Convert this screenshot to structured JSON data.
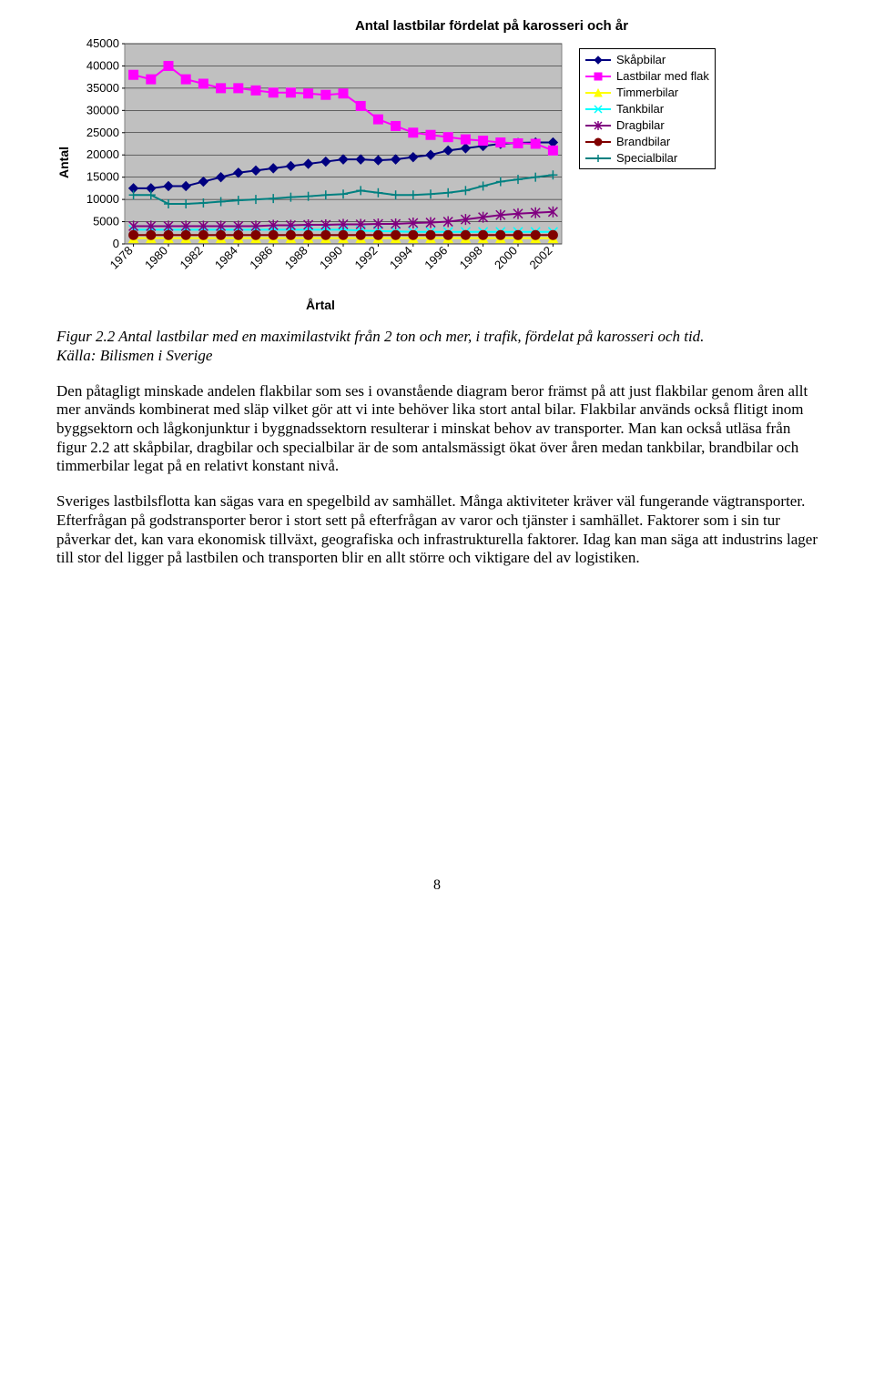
{
  "chart": {
    "title": "Antal lastbilar fördelat på karosseri och år",
    "type": "line",
    "y_label": "Antal",
    "x_label": "Årtal",
    "background_color": "#ffffff",
    "plot_bg_color": "#c0c0c0",
    "grid_color": "#000000",
    "border_color": "#808080",
    "axis_tick_font_size": 13,
    "axis_tick_font_family": "Helvetica",
    "title_font_size": 15,
    "title_font_weight": "bold",
    "ylim": [
      0,
      45000
    ],
    "ytick_step": 5000,
    "x_categories": [
      "1978",
      "1979",
      "1980",
      "1981",
      "1982",
      "1983",
      "1984",
      "1985",
      "1986",
      "1987",
      "1988",
      "1989",
      "1990",
      "1991",
      "1992",
      "1993",
      "1994",
      "1995",
      "1996",
      "1997",
      "1998",
      "1999",
      "2000",
      "2001",
      "2002"
    ],
    "x_tick_labels": [
      "1978",
      "1980",
      "1982",
      "1984",
      "1986",
      "1988",
      "1990",
      "1992",
      "1994",
      "1996",
      "1998",
      "2000",
      "2002"
    ],
    "x_tick_rotation": -45,
    "line_width": 2,
    "marker_size": 5,
    "series": [
      {
        "key": "skapbilar",
        "label": "Skåpbilar",
        "color": "#000080",
        "marker": "diamond",
        "values": [
          12500,
          12500,
          13000,
          13000,
          14000,
          15000,
          16000,
          16500,
          17000,
          17500,
          18000,
          18500,
          19000,
          19000,
          18800,
          19000,
          19500,
          20000,
          21000,
          21500,
          22000,
          22500,
          22700,
          22800,
          22800
        ]
      },
      {
        "key": "lastbilar",
        "label": "Lastbilar med flak",
        "color": "#ff00ff",
        "marker": "square",
        "values": [
          38000,
          37000,
          40000,
          37000,
          36000,
          35000,
          35000,
          34500,
          34000,
          34000,
          33800,
          33500,
          33800,
          31000,
          28000,
          26500,
          25000,
          24500,
          24000,
          23500,
          23200,
          22800,
          22600,
          22500,
          21000
        ]
      },
      {
        "key": "timmerbilar",
        "label": "Timmerbilar",
        "color": "#ffff00",
        "marker": "triangle",
        "values": [
          1300,
          1300,
          1300,
          1300,
          1300,
          1300,
          1300,
          1300,
          1300,
          1300,
          1300,
          1300,
          1300,
          1300,
          1300,
          1300,
          1300,
          1300,
          1300,
          1300,
          1300,
          1300,
          1300,
          1300,
          1300
        ]
      },
      {
        "key": "tankbilar",
        "label": "Tankbilar",
        "color": "#00ffff",
        "marker": "x",
        "values": [
          3200,
          3200,
          3200,
          3200,
          3200,
          3200,
          3200,
          3200,
          3200,
          3200,
          3200,
          3200,
          3200,
          3000,
          2900,
          2800,
          2700,
          2700,
          2700,
          2700,
          2700,
          2700,
          2700,
          2700,
          2700
        ]
      },
      {
        "key": "dragbilar",
        "label": "Dragbilar",
        "color": "#800080",
        "marker": "star",
        "values": [
          4000,
          4000,
          4000,
          4000,
          4000,
          4000,
          4000,
          4000,
          4200,
          4200,
          4300,
          4300,
          4400,
          4400,
          4500,
          4500,
          4700,
          4800,
          5000,
          5500,
          6000,
          6500,
          6800,
          7000,
          7200
        ]
      },
      {
        "key": "brandbilar",
        "label": "Brandbilar",
        "color": "#800000",
        "marker": "circle",
        "values": [
          2000,
          2000,
          2000,
          2000,
          2000,
          2000,
          2000,
          2000,
          2000,
          2000,
          2000,
          2000,
          2000,
          2000,
          2000,
          2000,
          2000,
          2000,
          2000,
          2000,
          2000,
          2000,
          2000,
          2000,
          2000
        ]
      },
      {
        "key": "specialbilar",
        "label": "Specialbilar",
        "color": "#008080",
        "marker": "plus",
        "values": [
          11000,
          11000,
          9000,
          9000,
          9200,
          9500,
          9800,
          10000,
          10200,
          10500,
          10700,
          11000,
          11200,
          12000,
          11500,
          11000,
          11000,
          11200,
          11500,
          12000,
          13000,
          14000,
          14500,
          15000,
          15500
        ]
      }
    ],
    "legend": {
      "border_color": "#000000",
      "bg_color": "#ffffff",
      "font_size": 13
    }
  },
  "caption": "Figur 2.2 Antal lastbilar med en maximilastvikt från 2 ton och mer, i trafik, fördelat på karosseri och tid.\nKälla: Bilismen i Sverige",
  "paragraphs": [
    "Den påtagligt minskade andelen flakbilar som ses i ovanstående diagram beror främst på att just flakbilar genom åren allt mer används kombinerat med släp vilket gör att vi inte behöver lika stort antal bilar. Flakbilar används också flitigt inom byggsektorn och lågkonjunktur i byggnadssektorn resulterar i minskat behov av transporter. Man kan också utläsa från figur 2.2 att skåpbilar, dragbilar och specialbilar är de som antalsmässigt ökat över åren medan tankbilar, brandbilar och timmerbilar legat på en relativt konstant nivå.",
    "Sveriges lastbilsflotta kan sägas vara en spegelbild av samhället. Många aktiviteter kräver väl fungerande vägtransporter. Efterfrågan på godstransporter beror i stort sett på efterfrågan av varor och tjänster i samhället. Faktorer som i sin tur påverkar det, kan vara ekonomisk tillväxt, geografiska och infrastrukturella faktorer. Idag kan man säga att industrins lager till stor del ligger på lastbilen och transporten blir en allt större och viktigare del av logistiken."
  ],
  "page_number": "8"
}
